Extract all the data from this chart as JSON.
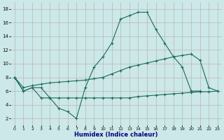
{
  "xlabel": "Humidex (Indice chaleur)",
  "xlim": [
    -0.5,
    23.5
  ],
  "ylim": [
    1,
    19
  ],
  "y_ticks": [
    2,
    4,
    6,
    8,
    10,
    12,
    14,
    16,
    18
  ],
  "x_ticks": [
    0,
    1,
    2,
    3,
    4,
    5,
    6,
    7,
    8,
    9,
    10,
    11,
    12,
    13,
    14,
    15,
    16,
    17,
    18,
    19,
    20,
    21,
    22,
    23
  ],
  "bg_color": "#cce8e8",
  "grid_color": "#b8a8a8",
  "line_color": "#1a6b5a",
  "curve1_x": [
    0,
    1,
    2,
    3,
    4,
    5,
    6,
    7,
    8,
    9,
    10,
    11,
    12,
    13,
    14,
    15,
    16,
    17,
    18,
    19,
    20,
    21
  ],
  "curve1_y": [
    8.0,
    6.0,
    6.5,
    6.5,
    5.0,
    3.5,
    3.0,
    2.0,
    6.5,
    9.5,
    11.0,
    13.0,
    16.5,
    17.0,
    17.5,
    17.5,
    15.0,
    13.0,
    11.0,
    9.5,
    6.0,
    6.0
  ],
  "curve2_x": [
    0,
    1,
    2,
    3,
    4,
    5,
    6,
    7,
    8,
    9,
    10,
    11,
    12,
    13,
    14,
    15,
    16,
    17,
    18,
    19,
    20,
    21,
    22,
    23
  ],
  "curve2_y": [
    8.0,
    6.0,
    6.5,
    5.0,
    5.0,
    5.0,
    5.0,
    5.0,
    5.0,
    5.0,
    5.0,
    5.0,
    5.0,
    5.0,
    5.2,
    5.3,
    5.4,
    5.5,
    5.6,
    5.7,
    5.8,
    5.9,
    5.9,
    6.0
  ],
  "curve3_x": [
    0,
    1,
    2,
    3,
    4,
    5,
    6,
    7,
    8,
    9,
    10,
    11,
    12,
    13,
    14,
    15,
    16,
    17,
    18,
    19,
    20,
    21,
    22,
    23
  ],
  "curve3_y": [
    8.0,
    6.5,
    6.8,
    7.0,
    7.2,
    7.3,
    7.4,
    7.5,
    7.6,
    7.8,
    8.0,
    8.5,
    9.0,
    9.5,
    9.8,
    10.1,
    10.4,
    10.7,
    11.0,
    11.2,
    11.4,
    10.5,
    6.5,
    6.0
  ]
}
